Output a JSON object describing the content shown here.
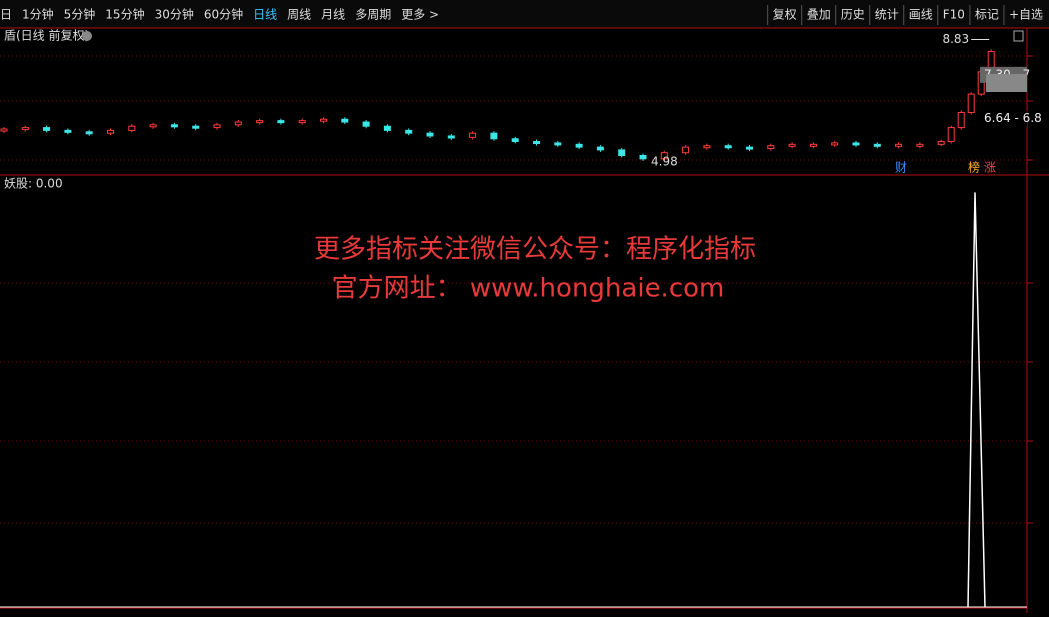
{
  "toolbar": {
    "left": [
      "日",
      "1分钟",
      "5分钟",
      "15分钟",
      "30分钟",
      "60分钟",
      "日线",
      "周线",
      "月线",
      "多周期",
      "更多 >"
    ],
    "active": 6,
    "right": [
      "复权",
      "叠加",
      "历史",
      "统计",
      "画线",
      "F10",
      "标记",
      "+自选"
    ]
  },
  "price_chart": {
    "title": "盾(日线 前复权)",
    "ylim": [
      4.4,
      9.6
    ],
    "values": [
      6.05,
      6.1,
      6.0,
      5.95,
      5.9,
      6.0,
      6.15,
      6.2,
      6.15,
      6.1,
      6.2,
      6.3,
      6.35,
      6.3,
      6.35,
      6.4,
      6.3,
      6.15,
      6.0,
      5.9,
      5.8,
      5.75,
      5.9,
      5.7,
      5.6,
      5.55,
      5.5,
      5.4,
      5.3,
      5.1,
      4.98,
      5.2,
      5.4,
      5.45,
      5.4,
      5.35,
      5.45,
      5.5,
      5.5,
      5.55,
      5.5,
      5.45,
      5.5,
      5.5,
      5.6,
      6.1,
      6.64,
      7.3,
      8.1,
      8.83
    ],
    "high_label": "8.83",
    "low_label": "4.98",
    "price_tags": [
      "7.30 - 7",
      "6.64 - 6.8"
    ],
    "badges": [
      "财",
      "榜",
      "涨"
    ]
  },
  "indicator": {
    "label": "妖股: 0.00",
    "ylim": [
      0,
      1.03
    ],
    "values": [
      0,
      1,
      0
    ]
  },
  "watermark": [
    "更多指标关注微信公众号：程序化指标",
    "官方网址： www.honghaie.com"
  ]
}
